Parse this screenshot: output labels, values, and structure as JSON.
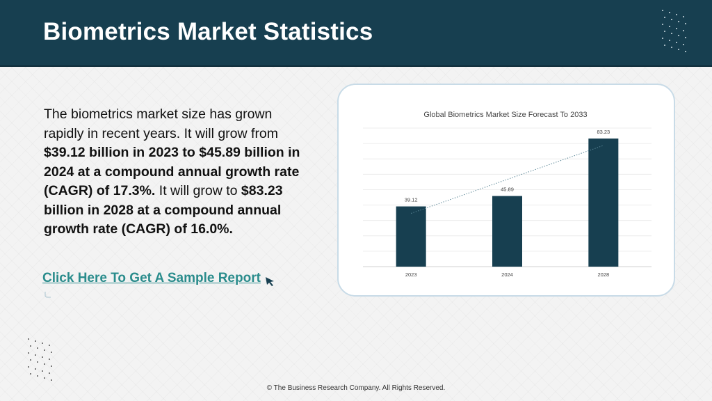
{
  "header": {
    "title": "Biometrics Market Statistics"
  },
  "content": {
    "para": [
      {
        "text": "The biometrics market size has grown rapidly in recent years. It will grow from ",
        "bold": false
      },
      {
        "text": "$39.12 billion in 2023 to $45.89 billion in 2024 at a compound annual growth rate (CAGR) of 17.3%.",
        "bold": true
      },
      {
        "text": " It will grow to ",
        "bold": false
      },
      {
        "text": "$83.23 billion in 2028 at a compound annual growth rate (CAGR) of 16.0%.",
        "bold": true
      }
    ],
    "cta_label": "Click Here To Get A Sample Report"
  },
  "chart_data": {
    "type": "bar",
    "title": "Global Biometrics Market Size Forecast To 2033",
    "categories": [
      "2023",
      "2024",
      "2028"
    ],
    "values": [
      39.12,
      45.89,
      83.23
    ],
    "data_labels": [
      "39.12",
      "45.89",
      "83.23"
    ],
    "ylim": [
      0,
      90
    ],
    "grid": true,
    "trendline": "dotted",
    "bar_color": "#173f50"
  },
  "footer": {
    "copyright": "© The Business Research Company. All Rights Reserved."
  },
  "colors": {
    "header_bg": "#173f50",
    "link": "#2a8c8c",
    "bar": "#173f50"
  }
}
